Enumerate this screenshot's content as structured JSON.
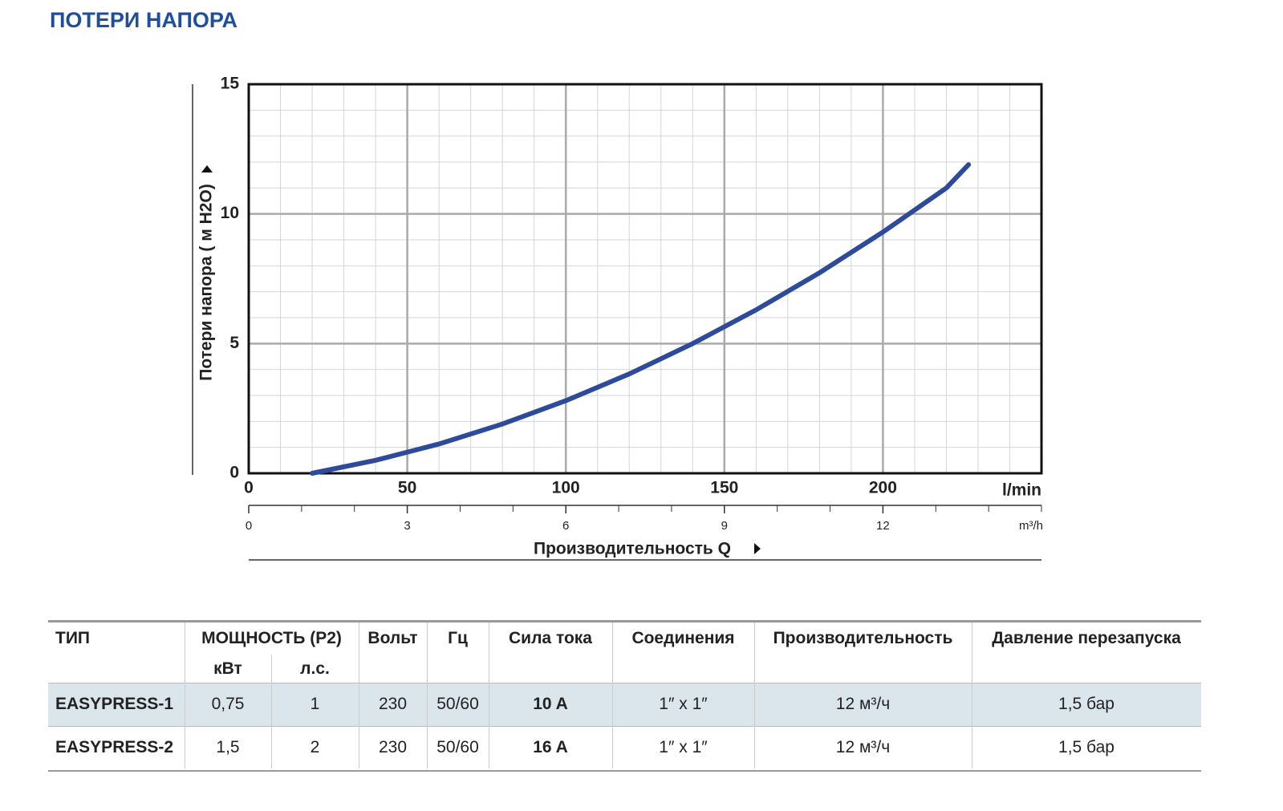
{
  "header": {
    "title": "ПОТЕРИ НАПОРА"
  },
  "chart_data": {
    "type": "line",
    "y_label": "Потери напора ( м H2O)",
    "x_label": "Производительность Q",
    "x_unit": "l/min",
    "x2_unit": "m³/h",
    "x": [
      20,
      40,
      60,
      80,
      100,
      120,
      140,
      160,
      180,
      200,
      220,
      227
    ],
    "series": [
      {
        "color": "#2e4b9b",
        "values": [
          0,
          0.5,
          1.13,
          1.9,
          2.8,
          3.83,
          5.0,
          6.3,
          7.73,
          9.3,
          11.0,
          11.9
        ]
      }
    ],
    "xlim": [
      0,
      250
    ],
    "xticks": [
      0,
      50,
      100,
      150,
      200
    ],
    "x2lim": [
      0,
      15
    ],
    "x2ticks": [
      0,
      3,
      6,
      9,
      12
    ],
    "ylim": [
      0,
      15
    ],
    "yticks": [
      0,
      5,
      10,
      15
    ],
    "grid": true
  },
  "table": {
    "header": [
      "ТИП",
      "МОЩНОСТЬ (P2)",
      "Вольт",
      "Гц",
      "Сила тока",
      "Соединения",
      "Производительность",
      "Давление перезапуска"
    ],
    "subheader": [
      "кВт",
      "л.с."
    ],
    "rows": [
      [
        "EASYPRESS-1",
        "0,75",
        "1",
        "230",
        "50/60",
        "10 A",
        "1″ x 1″",
        "12 м³/ч",
        "1,5 бар"
      ],
      [
        "EASYPRESS-2",
        "1,5",
        "2",
        "230",
        "50/60",
        "16 A",
        "1″ x 1″",
        "12 м³/ч",
        "1,5 бар"
      ]
    ]
  }
}
